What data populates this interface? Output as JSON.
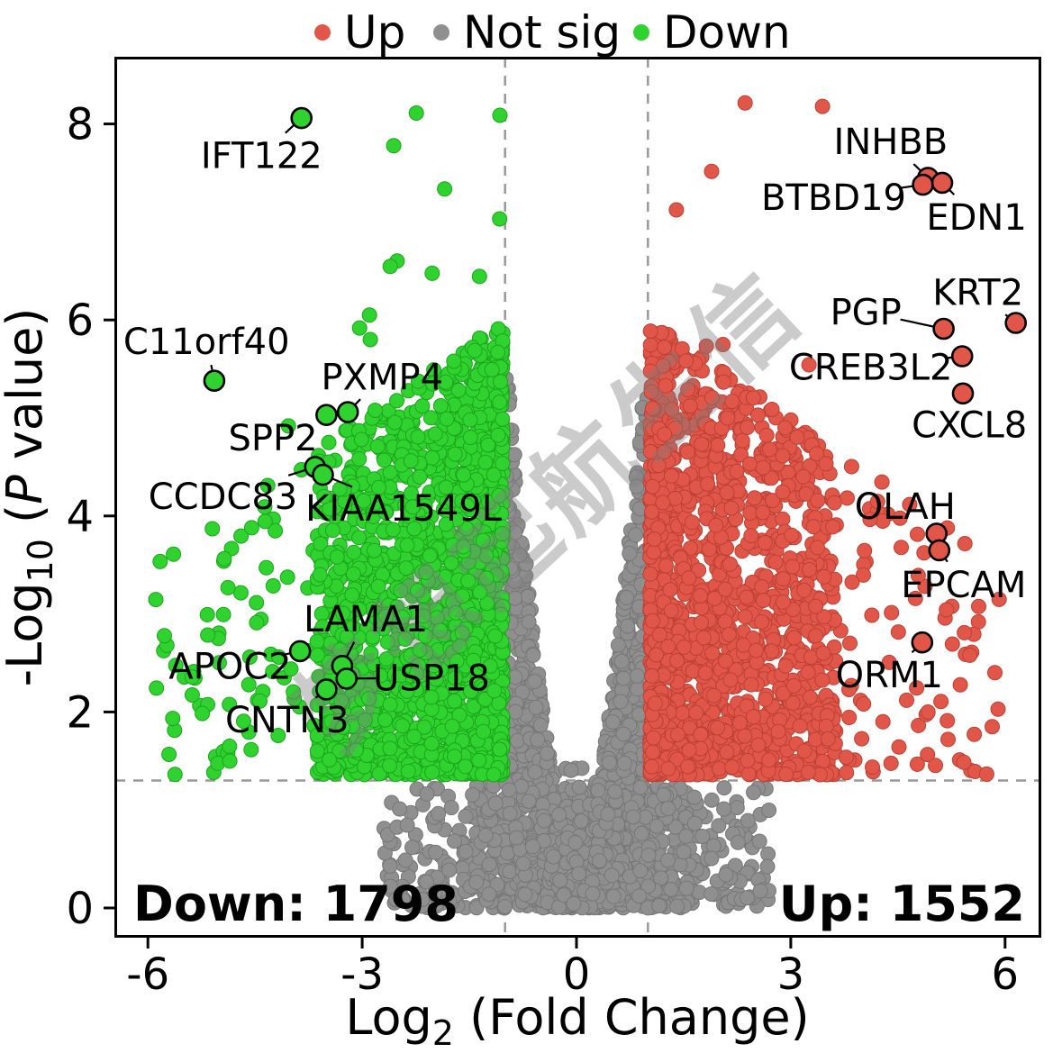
{
  "chart_data": {
    "type": "scatter",
    "subtype": "volcano",
    "title": "",
    "axis": {
      "x_pre": "Log",
      "x_sub": "2",
      "x_post": " (Fold Change)",
      "y_pre": "-Log",
      "y_sub": "10",
      "y_open": " (",
      "y_italic": "P",
      "y_close": " value)"
    },
    "xlim": [
      -6.45,
      6.5
    ],
    "ylim": [
      -0.3,
      8.7
    ],
    "xticks": [
      "-6",
      "-3",
      "0",
      "3",
      "6"
    ],
    "xtick_values": [
      -6,
      -3,
      0,
      3,
      6
    ],
    "yticks": [
      "0",
      "2",
      "4",
      "6",
      "8"
    ],
    "ytick_values": [
      0,
      2,
      4,
      6,
      8
    ],
    "grid": false,
    "thresholds": {
      "x": [
        -1,
        1
      ],
      "y": 1.301
    },
    "legend": {
      "position": "top",
      "items": [
        {
          "label": "Up",
          "color": "#e05749",
          "ring": "#9c3228"
        },
        {
          "label": "Not sig",
          "color": "#8f8f8f",
          "ring": "#6b6b6b"
        },
        {
          "label": "Down",
          "color": "#2fd22f",
          "ring": "#1d8f1d"
        }
      ]
    },
    "counts": {
      "down": 1798,
      "up": 1552,
      "down_label": "Down: 1798",
      "up_label": "Up: 1552",
      "down_color": "#2fd22f",
      "up_color": "#e05749"
    },
    "labeled_genes": {
      "down": [
        {
          "name": "IFT122",
          "x": -3.85,
          "y": 8.06,
          "lx": -4.41,
          "ly": 7.68
        },
        {
          "name": "C11orf40",
          "x": -5.07,
          "y": 5.38,
          "lx": -5.18,
          "ly": 5.78
        },
        {
          "name": "PXMP4",
          "x": -3.2,
          "y": 5.06,
          "lx": -2.72,
          "ly": 5.42
        },
        {
          "name": "SPP2",
          "x": -3.5,
          "y": 5.03,
          "lx": -4.25,
          "ly": 4.8
        },
        {
          "name": "CCDC83",
          "x": -3.66,
          "y": 4.5,
          "lx": -4.95,
          "ly": 4.2
        },
        {
          "name": "KIAA1549L",
          "x": -3.55,
          "y": 4.42,
          "lx": -2.42,
          "ly": 4.08
        },
        {
          "name": "LAMA1",
          "x": -3.28,
          "y": 2.47,
          "lx": -2.95,
          "ly": 2.95
        },
        {
          "name": "APOC2",
          "x": -3.87,
          "y": 2.62,
          "lx": -4.85,
          "ly": 2.47
        },
        {
          "name": "USP18",
          "x": -3.22,
          "y": 2.34,
          "lx": -2.03,
          "ly": 2.35
        },
        {
          "name": "CNTN3",
          "x": -3.5,
          "y": 2.23,
          "lx": -4.05,
          "ly": 1.92
        }
      ],
      "up": [
        {
          "name": "INHBB",
          "x": 4.92,
          "y": 7.45,
          "lx": 4.4,
          "ly": 7.82
        },
        {
          "name": "BTBD19",
          "x": 4.85,
          "y": 7.38,
          "lx": 3.6,
          "ly": 7.25
        },
        {
          "name": "EDN1",
          "x": 5.12,
          "y": 7.4,
          "lx": 5.6,
          "ly": 7.05
        },
        {
          "name": "KRT2",
          "x": 6.15,
          "y": 5.97,
          "lx": 5.62,
          "ly": 6.28
        },
        {
          "name": "PGP",
          "x": 5.14,
          "y": 5.91,
          "lx": 4.05,
          "ly": 6.08
        },
        {
          "name": "CREB3L2",
          "x": 5.4,
          "y": 5.63,
          "lx": 4.12,
          "ly": 5.52
        },
        {
          "name": "CXCL8",
          "x": 5.41,
          "y": 5.25,
          "lx": 5.5,
          "ly": 4.93
        },
        {
          "name": "OLAH",
          "x": 5.04,
          "y": 3.82,
          "lx": 4.6,
          "ly": 4.1
        },
        {
          "name": "EPCAM",
          "x": 5.08,
          "y": 3.65,
          "lx": 5.42,
          "ly": 3.3
        },
        {
          "name": "ORM1",
          "x": 4.84,
          "y": 2.71,
          "lx": 4.38,
          "ly": 2.38
        }
      ]
    },
    "cloud": {
      "seed": 42,
      "gray_n": 2600,
      "down_n": 1798,
      "up_n": 1552
    },
    "watermark": "梦想起航生信"
  }
}
